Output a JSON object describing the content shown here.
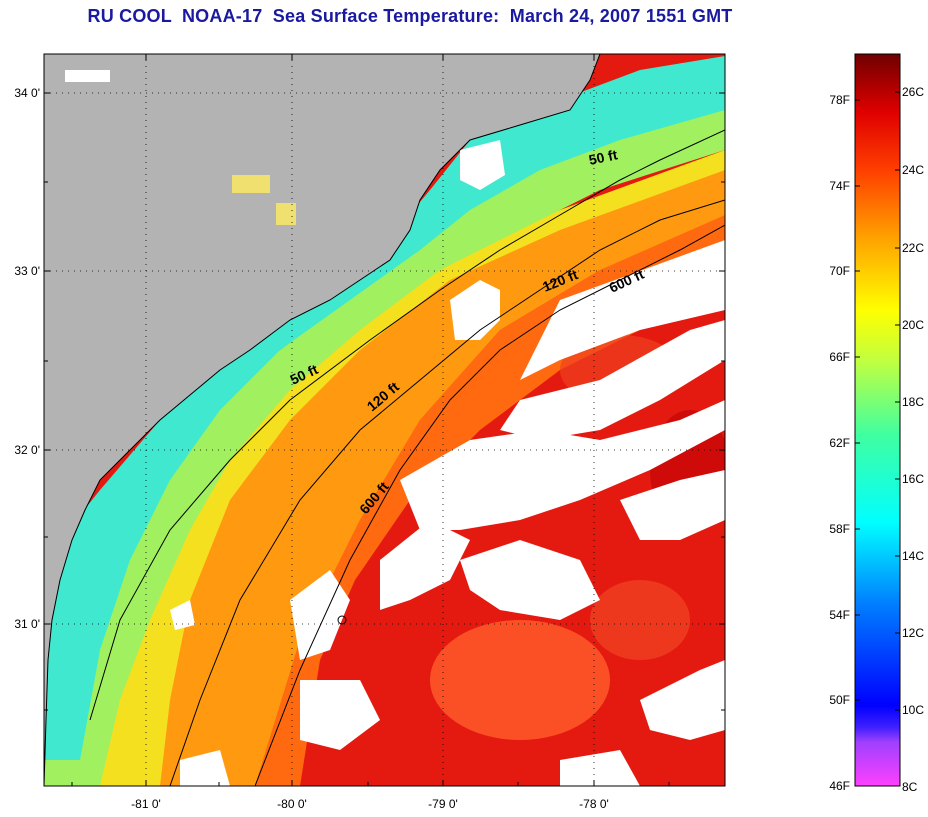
{
  "title": "RU COOL  NOAA-17  Sea Surface Temperature:  March 24, 2007 1551 GMT",
  "map": {
    "lat_labels": [
      "34 0'",
      "33 0'",
      "32 0'",
      "31 0'"
    ],
    "lon_labels": [
      "-81 0'",
      "-80 0'",
      "-79 0'",
      "-78 0'"
    ],
    "isobaths": [
      "50 ft",
      "120 ft",
      "600 ft"
    ],
    "colors": {
      "land": "#b3b3b3",
      "cloud": "#ffffff",
      "warm": "#e01010",
      "cool": "#33e0d0"
    }
  },
  "colorbar": {
    "f_labels": [
      "78F",
      "74F",
      "70F",
      "66F",
      "62F",
      "58F",
      "54F",
      "50F",
      "46F"
    ],
    "c_labels": [
      "26C",
      "24C",
      "22C",
      "20C",
      "18C",
      "16C",
      "14C",
      "12C",
      "10C",
      "8C"
    ]
  }
}
